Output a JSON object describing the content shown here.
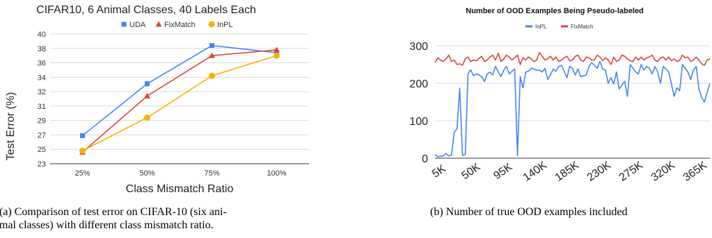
{
  "colors": {
    "uda": "#4285f4",
    "fixmatch": "#db4437",
    "inpl": "#f4b400",
    "grid": "#d9d9d9",
    "axis": "#333333"
  },
  "captions": {
    "a_line1": "(a) Comparison of test error on CIFAR-10 (six ani-",
    "a_line2": "mal classes) with different class mismatch ratio.",
    "b": "(b) Number of true OOD examples included"
  },
  "chart_data": [
    {
      "type": "line",
      "title": "CIFAR10, 6 Animal Classes, 40 Labels Each",
      "xlabel": "Class Mismatch Ratio",
      "ylabel": "Test Error (%)",
      "categories": [
        "25%",
        "50%",
        "75%",
        "100%"
      ],
      "yticks": [
        "23",
        "25",
        "27",
        "29",
        "31",
        "32",
        "34",
        "36",
        "38",
        "40"
      ],
      "ylim": [
        23,
        40
      ],
      "grid": true,
      "legend_position": "top",
      "series": [
        {
          "name": "UDA",
          "color": "#4285f4",
          "marker": "square",
          "values": [
            26.9,
            33.1,
            38.4,
            37.4
          ]
        },
        {
          "name": "FixMatch",
          "color": "#db4437",
          "marker": "triangle",
          "values": [
            24.6,
            31.7,
            37.0,
            37.8
          ]
        },
        {
          "name": "InPL",
          "color": "#f4b400",
          "marker": "circle",
          "values": [
            24.8,
            29.4,
            34.2,
            37.0
          ]
        }
      ]
    },
    {
      "type": "line",
      "title": "Number of OOD Examples Being Pseudo-labeled",
      "xlabel": "",
      "ylabel": "",
      "x_tick_labels": [
        "5K",
        "50K",
        "95K",
        "140K",
        "185K",
        "230K",
        "275K",
        "320K",
        "365K"
      ],
      "yticks": [
        0,
        100,
        200,
        300
      ],
      "ylim": [
        0,
        300
      ],
      "grid": true,
      "legend_position": "top",
      "series": [
        {
          "name": "InPL",
          "color": "#4285f4",
          "values": [
            10,
            4,
            5,
            6,
            13,
            6,
            8,
            70,
            78,
            187,
            7,
            10,
            225,
            236,
            220,
            225,
            222,
            218,
            205,
            225,
            230,
            222,
            245,
            230,
            218,
            235,
            245,
            225,
            232,
            238,
            7,
            218,
            188,
            230,
            232,
            240,
            238,
            235,
            235,
            230,
            240,
            210,
            222,
            238,
            232,
            245,
            248,
            232,
            215,
            245,
            240,
            222,
            238,
            218,
            220,
            222,
            245,
            255,
            248,
            240,
            258,
            238,
            235,
            200,
            215,
            198,
            230,
            185,
            195,
            205,
            165,
            250,
            240,
            230,
            225,
            250,
            235,
            245,
            240,
            225,
            245,
            230,
            200,
            245,
            238,
            230,
            198,
            165,
            188,
            180,
            250,
            240,
            230,
            210,
            235,
            245,
            185,
            162,
            150,
            175,
            200
          ]
        },
        {
          "name": "FixMatch",
          "color": "#db4437",
          "values": [
            255,
            268,
            262,
            258,
            265,
            275,
            258,
            262,
            250,
            252,
            248,
            265,
            270,
            258,
            262,
            260,
            266,
            272,
            258,
            262,
            270,
            275,
            262,
            280,
            258,
            265,
            275,
            270,
            262,
            268,
            275,
            250,
            268,
            262,
            270,
            265,
            258,
            262,
            282,
            272,
            262,
            266,
            272,
            262,
            270,
            258,
            262,
            268,
            272,
            260,
            262,
            272,
            275,
            262,
            258,
            270,
            268,
            262,
            262,
            275,
            270,
            260,
            268,
            262,
            250,
            270,
            258,
            262,
            275,
            272,
            265,
            260,
            258,
            270,
            262,
            270,
            262,
            268,
            270,
            275,
            262,
            258,
            268,
            270,
            262,
            270,
            260,
            265,
            258,
            262,
            275,
            268,
            270,
            258,
            262,
            270,
            262,
            252,
            248,
            262,
            265
          ]
        }
      ]
    }
  ]
}
